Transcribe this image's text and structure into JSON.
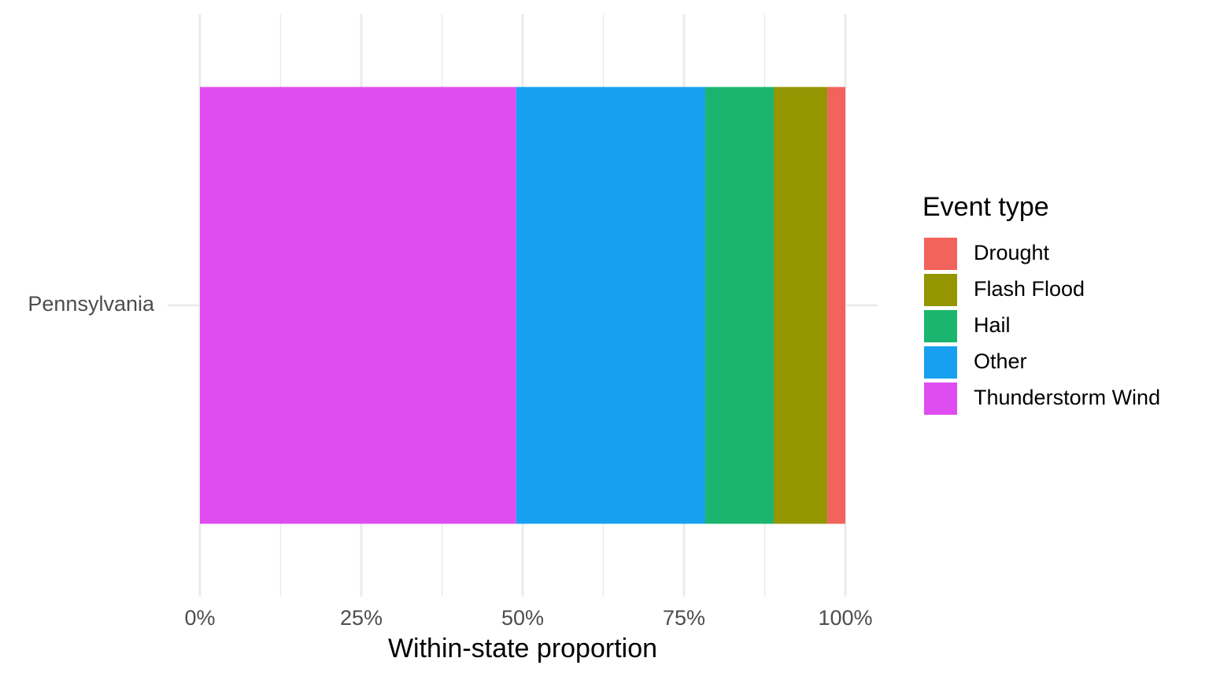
{
  "chart_data": {
    "type": "stacked_barh",
    "categories": [
      "Pennsylvania"
    ],
    "series": [
      {
        "name": "Drought",
        "color": "#f2635c",
        "values": [
          2.8
        ]
      },
      {
        "name": "Flash Flood",
        "color": "#939600",
        "values": [
          8.3
        ]
      },
      {
        "name": "Hail",
        "color": "#1ab56e",
        "values": [
          10.6
        ]
      },
      {
        "name": "Other",
        "color": "#17a0f0",
        "values": [
          29.3
        ]
      },
      {
        "name": "Thunderstorm Wind",
        "color": "#df4df0",
        "values": [
          49
        ]
      }
    ],
    "xlabel": "Within-state proportion",
    "legend_title": "Event type",
    "legend_position": "right",
    "xlim": [
      -5,
      105
    ],
    "xticks": [
      {
        "value": 0,
        "label": "0%"
      },
      {
        "value": 25,
        "label": "25%"
      },
      {
        "value": 50,
        "label": "50%"
      },
      {
        "value": 75,
        "label": "75%"
      },
      {
        "value": 100,
        "label": "100%"
      }
    ],
    "minor_xticks": [
      12.5,
      37.5,
      62.5,
      87.5
    ],
    "grid": true
  }
}
